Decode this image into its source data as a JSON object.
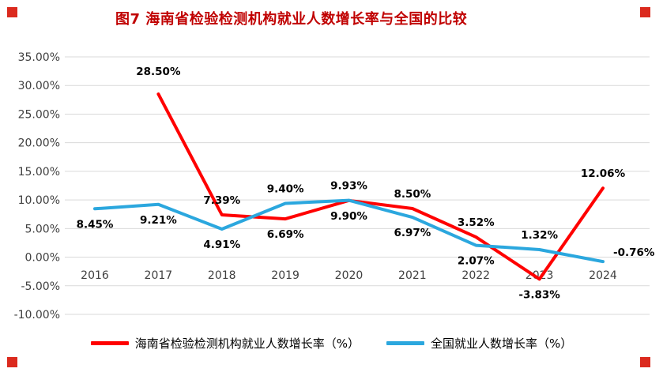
{
  "page": {
    "corner_color": "#DB2A1E"
  },
  "chart_data": {
    "type": "line",
    "title": "图7 海南省检验检测机构就业人数增长率与全国的比较",
    "title_color": "#C00000",
    "categories": [
      "2016",
      "2017",
      "2018",
      "2019",
      "2020",
      "2021",
      "2022",
      "2023",
      "2024"
    ],
    "y_ticks": [
      "35.00%",
      "30.00%",
      "25.00%",
      "20.00%",
      "15.00%",
      "10.00%",
      "5.00%",
      "0.00%",
      "-5.00%",
      "-10.00%"
    ],
    "ylim": [
      -10,
      35
    ],
    "y_step": 5,
    "grid": true,
    "gridline_color": "#d9d9d9",
    "legend_position": "bottom",
    "series": [
      {
        "name": "海南省检验检测机构就业人数增长率（%）",
        "color": "#FF0000",
        "values": [
          null,
          28.5,
          7.39,
          6.69,
          9.9,
          8.5,
          3.52,
          -3.83,
          12.06
        ],
        "labels": [
          null,
          "28.50%",
          "7.39%",
          "6.69%",
          "9.90%",
          "8.50%",
          "3.52%",
          "-3.83%",
          "12.06%"
        ],
        "label_placement": [
          null,
          "above-far",
          "above",
          "below",
          "below",
          "above",
          "above",
          "below",
          "above"
        ]
      },
      {
        "name": "全国就业人数增长率（%）",
        "color": "#2BA7DE",
        "values": [
          8.45,
          9.21,
          4.91,
          9.4,
          9.93,
          6.97,
          2.07,
          1.32,
          -0.76
        ],
        "labels": [
          "8.45%",
          "9.21%",
          "4.91%",
          "9.40%",
          "9.93%",
          "6.97%",
          "2.07%",
          "1.32%",
          "-0.76%"
        ],
        "label_placement": [
          "below",
          "below",
          "below",
          "above",
          "above",
          "below",
          "below",
          "above",
          "right"
        ]
      }
    ]
  }
}
